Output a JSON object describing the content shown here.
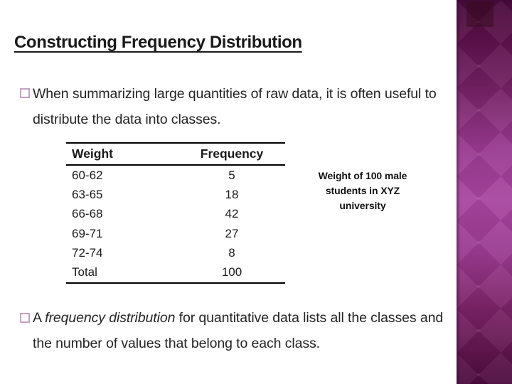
{
  "slide": {
    "title": "Constructing Frequency Distribution",
    "bullet1": "When summarizing large quantities of raw data, it is often useful to distribute the data into classes.",
    "bullet2_prefix": "A ",
    "bullet2_italic": "frequency distribution",
    "bullet2_suffix": " for quantitative data lists all the classes and the number of values that belong to each class."
  },
  "table": {
    "col_headers": [
      "Weight",
      "Frequency"
    ],
    "rows": [
      {
        "class": "60-62",
        "frequency": "5"
      },
      {
        "class": "63-65",
        "frequency": "18"
      },
      {
        "class": "66-68",
        "frequency": "42"
      },
      {
        "class": "69-71",
        "frequency": "27"
      },
      {
        "class": "72-74",
        "frequency": "8"
      },
      {
        "class": "Total",
        "frequency": "100"
      }
    ],
    "caption_lines": [
      "Weight of 100 male",
      "students in XYZ",
      "university"
    ]
  },
  "colors": {
    "panel_top": "#470a3a",
    "panel_bright": "#a847a0",
    "panel_bottom": "#4b0c3d",
    "bullet_outline": "#c9a0c5",
    "title_text": "#1a1a1a",
    "body_text": "#242424",
    "table_text": "#1a1a1a"
  }
}
